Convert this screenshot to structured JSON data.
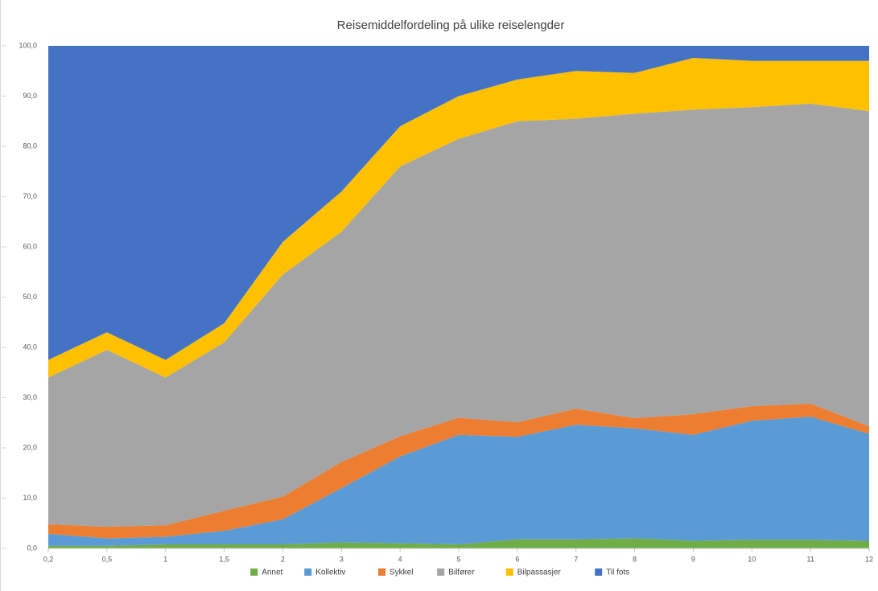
{
  "chart_data": {
    "type": "stacked-area",
    "title": "Reisemiddelfordeling på ulike reiselengder",
    "categories": [
      "0,2",
      "0,5",
      "1",
      "1,5",
      "2",
      "3",
      "4",
      "5",
      "6",
      "7",
      "8",
      "9",
      "10",
      "11",
      "12"
    ],
    "series": [
      {
        "name": "Annet",
        "color": "#70ad47",
        "values": [
          0.5,
          0.5,
          0.8,
          0.8,
          0.8,
          1.2,
          1.0,
          0.8,
          1.8,
          1.8,
          2.0,
          1.5,
          1.7,
          1.7,
          1.5
        ]
      },
      {
        "name": "Kollektiv",
        "color": "#5b9bd5",
        "values": [
          2.4,
          1.5,
          1.5,
          2.7,
          5.0,
          10.8,
          17.3,
          21.8,
          20.4,
          22.8,
          21.9,
          21.1,
          23.7,
          24.5,
          21.3
        ]
      },
      {
        "name": "Sykkel",
        "color": "#ed7d31",
        "values": [
          1.9,
          2.3,
          2.3,
          4.0,
          4.5,
          5.2,
          4.0,
          3.4,
          2.9,
          3.2,
          2.0,
          4.1,
          2.9,
          2.6,
          1.5
        ]
      },
      {
        "name": "Bilfører",
        "color": "#a5a5a5",
        "values": [
          29.2,
          35.2,
          29.4,
          33.5,
          44.2,
          45.8,
          53.7,
          55.5,
          59.9,
          57.7,
          60.6,
          60.6,
          59.5,
          59.7,
          62.7
        ]
      },
      {
        "name": "Bilpassasjer",
        "color": "#ffc000",
        "values": [
          3.5,
          3.5,
          3.5,
          3.8,
          6.5,
          8.0,
          8.0,
          8.5,
          8.3,
          9.5,
          8.1,
          10.3,
          9.2,
          8.5,
          10.0
        ]
      },
      {
        "name": "Til fots",
        "color": "#4472c4",
        "values": [
          62.5,
          57.0,
          62.5,
          55.2,
          39.0,
          29.0,
          16.0,
          10.0,
          6.7,
          5.0,
          5.4,
          2.4,
          3.0,
          3.0,
          3.0
        ]
      }
    ],
    "ylim": [
      0,
      100
    ],
    "yticks": [
      {
        "value": 0,
        "label": "0,0"
      },
      {
        "value": 10,
        "label": "10,0"
      },
      {
        "value": 20,
        "label": "20,0"
      },
      {
        "value": 30,
        "label": "30,0"
      },
      {
        "value": 40,
        "label": "40,0"
      },
      {
        "value": 50,
        "label": "50,0"
      },
      {
        "value": 60,
        "label": "60,0"
      },
      {
        "value": 70,
        "label": "70,0"
      },
      {
        "value": 80,
        "label": "80,0"
      },
      {
        "value": 90,
        "label": "90,0"
      },
      {
        "value": 100,
        "label": "100,0"
      }
    ],
    "grid": false,
    "legend": "bottom"
  }
}
